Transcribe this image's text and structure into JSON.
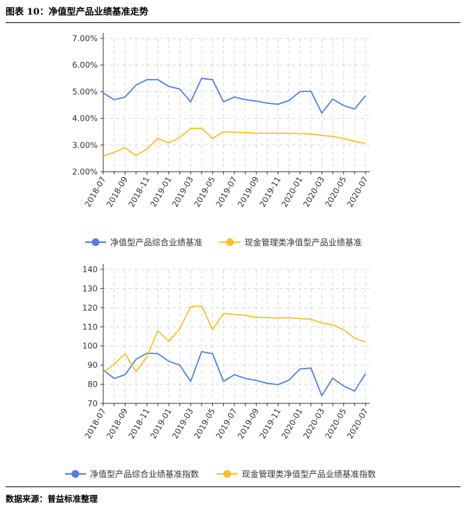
{
  "header": {
    "title": "图表 10：净值型产品业绩基准走势"
  },
  "footer": {
    "source": "数据来源：普益标准整理"
  },
  "colors": {
    "blue": "#4f7fe6",
    "orange": "#f6c12c",
    "grid": "#d9d9d9",
    "axis": "#333333"
  },
  "chart_data": [
    {
      "type": "line",
      "title": "",
      "x": [
        "2018-07",
        "2018-08",
        "2018-09",
        "2018-10",
        "2018-11",
        "2018-12",
        "2019-01",
        "2019-02",
        "2019-03",
        "2019-04",
        "2019-05",
        "2019-06",
        "2019-07",
        "2019-08",
        "2019-09",
        "2019-10",
        "2019-11",
        "2019-12",
        "2020-01",
        "2020-02",
        "2020-03",
        "2020-04",
        "2020-05",
        "2020-06",
        "2020-07"
      ],
      "x_tick_labels": [
        "2018-07",
        "2018-09",
        "2018-11",
        "2019-01",
        "2019-03",
        "2019-05",
        "2019-07",
        "2019-09",
        "2019-11",
        "2020-01",
        "2020-03",
        "2020-05",
        "2020-07"
      ],
      "y_tick_labels": [
        "2.00%",
        "3.00%",
        "4.00%",
        "5.00%",
        "6.00%",
        "7.00%"
      ],
      "ylim": [
        2,
        7
      ],
      "yticks": [
        2,
        3,
        4,
        5,
        6,
        7
      ],
      "grid": true,
      "legend_position": "bottom",
      "series": [
        {
          "name": "净值型产品综合业绩基准",
          "color": "#4f7fe6",
          "values": [
            4.95,
            4.7,
            4.8,
            5.25,
            5.45,
            5.45,
            5.2,
            5.1,
            4.62,
            5.5,
            5.45,
            4.62,
            4.8,
            4.7,
            4.65,
            4.57,
            4.53,
            4.67,
            5.0,
            5.02,
            4.2,
            4.72,
            4.48,
            4.35,
            4.85
          ]
        },
        {
          "name": "现金管理类净值型产品业绩基准",
          "color": "#f6c12c",
          "values": [
            2.58,
            2.73,
            2.9,
            2.6,
            2.85,
            3.25,
            3.08,
            3.28,
            3.62,
            3.63,
            3.25,
            3.5,
            3.48,
            3.47,
            3.44,
            3.44,
            3.44,
            3.44,
            3.43,
            3.42,
            3.36,
            3.32,
            3.25,
            3.13,
            3.06
          ]
        }
      ]
    },
    {
      "type": "line",
      "title": "",
      "x": [
        "2018-07",
        "2018-08",
        "2018-09",
        "2018-10",
        "2018-11",
        "2018-12",
        "2019-01",
        "2019-02",
        "2019-03",
        "2019-04",
        "2019-05",
        "2019-06",
        "2019-07",
        "2019-08",
        "2019-09",
        "2019-10",
        "2019-11",
        "2019-12",
        "2020-01",
        "2020-02",
        "2020-03",
        "2020-04",
        "2020-05",
        "2020-06",
        "2020-07"
      ],
      "x_tick_labels": [
        "2018-07",
        "2018-09",
        "2018-11",
        "2019-01",
        "2019-03",
        "2019-05",
        "2019-07",
        "2019-09",
        "2019-11",
        "2020-01",
        "2020-03",
        "2020-05",
        "2020-07"
      ],
      "y_tick_labels": [
        "70",
        "80",
        "90",
        "100",
        "110",
        "120",
        "130",
        "140"
      ],
      "ylim": [
        70,
        140
      ],
      "yticks": [
        70,
        80,
        90,
        100,
        110,
        120,
        130,
        140
      ],
      "grid": true,
      "legend_position": "bottom",
      "series": [
        {
          "name": "净值型产品综合业绩基准指数",
          "color": "#4f7fe6",
          "values": [
            87.5,
            83,
            85,
            93,
            96.2,
            96,
            92,
            90,
            81.5,
            97,
            96,
            81.5,
            85,
            83,
            82,
            80.5,
            79.8,
            82.2,
            88,
            88.5,
            74,
            83.2,
            79,
            76.5,
            85.5
          ]
        },
        {
          "name": "现金管理类净值型产品业绩基准指数",
          "color": "#f6c12c",
          "values": [
            86,
            90.5,
            96,
            86.5,
            94.5,
            108,
            102.5,
            109,
            120.5,
            121,
            108.5,
            117,
            116.5,
            116,
            115,
            114.8,
            114.6,
            114.8,
            114.3,
            114,
            112,
            111,
            108.5,
            104,
            102
          ]
        }
      ]
    }
  ]
}
